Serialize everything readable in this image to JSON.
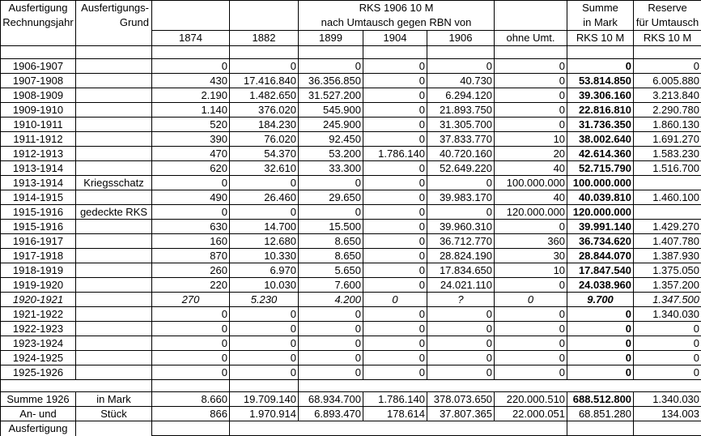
{
  "colors": {
    "grid": "#000000",
    "background": "#ffffff",
    "text": "#000000"
  },
  "table": {
    "header": {
      "col_year": [
        "Ausfertigung",
        "Rechnungsjahr"
      ],
      "col_grund": [
        "Ausfertigungs-",
        "Grund"
      ],
      "group_title": "RKS 1906 10 M",
      "group_subtitle": "nach Umtausch gegen RBN von",
      "year_labels": [
        "1874",
        "1882",
        "1899",
        "1904",
        "1906",
        "ohne Umt."
      ],
      "summe": [
        "Summe",
        "in Mark",
        "RKS 10 M"
      ],
      "reserve": [
        "Reserve",
        "für Umtausch",
        "RKS 10 M"
      ]
    },
    "rows": [
      {
        "year": "",
        "grund": "",
        "vals": [
          "",
          "",
          "",
          "",
          "",
          "",
          "",
          ""
        ],
        "empty": true
      },
      {
        "year": "1906-1907",
        "grund": "",
        "vals": [
          "0",
          "0",
          "0",
          "0",
          "0",
          "0",
          "0",
          "0"
        ]
      },
      {
        "year": "1907-1908",
        "grund": "",
        "vals": [
          "430",
          "17.416.840",
          "36.356.850",
          "0",
          "40.730",
          "0",
          "53.814.850",
          "6.005.880"
        ]
      },
      {
        "year": "1908-1909",
        "grund": "",
        "vals": [
          "2.190",
          "1.482.650",
          "31.527.200",
          "0",
          "6.294.120",
          "0",
          "39.306.160",
          "3.213.840"
        ]
      },
      {
        "year": "1909-1910",
        "grund": "",
        "vals": [
          "1.140",
          "376.020",
          "545.900",
          "0",
          "21.893.750",
          "0",
          "22.816.810",
          "2.290.780"
        ]
      },
      {
        "year": "1910-1911",
        "grund": "",
        "vals": [
          "520",
          "184.230",
          "245.900",
          "0",
          "31.305.700",
          "0",
          "31.736.350",
          "1.860.130"
        ]
      },
      {
        "year": "1911-1912",
        "grund": "",
        "vals": [
          "390",
          "76.020",
          "92.450",
          "0",
          "37.833.770",
          "10",
          "38.002.640",
          "1.691.270"
        ]
      },
      {
        "year": "1912-1913",
        "grund": "",
        "vals": [
          "470",
          "54.370",
          "53.200",
          "1.786.140",
          "40.720.160",
          "20",
          "42.614.360",
          "1.583.230"
        ]
      },
      {
        "year": "1913-1914",
        "grund": "",
        "vals": [
          "620",
          "32.610",
          "33.300",
          "0",
          "52.649.220",
          "40",
          "52.715.790",
          "1.516.700"
        ]
      },
      {
        "year": "1913-1914",
        "grund": "Kriegsschatz",
        "vals": [
          "0",
          "0",
          "0",
          "0",
          "0",
          "100.000.000",
          "100.000.000",
          ""
        ]
      },
      {
        "year": "1914-1915",
        "grund": "",
        "vals": [
          "490",
          "26.460",
          "29.650",
          "0",
          "39.983.170",
          "40",
          "40.039.810",
          "1.460.100"
        ]
      },
      {
        "year": "1915-1916",
        "grund": "gedeckte RKS",
        "vals": [
          "0",
          "0",
          "0",
          "0",
          "0",
          "120.000.000",
          "120.000.000",
          ""
        ]
      },
      {
        "year": "1915-1916",
        "grund": "",
        "vals": [
          "630",
          "14.700",
          "15.500",
          "0",
          "39.960.310",
          "0",
          "39.991.140",
          "1.429.270"
        ]
      },
      {
        "year": "1916-1917",
        "grund": "",
        "vals": [
          "160",
          "12.680",
          "8.650",
          "0",
          "36.712.770",
          "360",
          "36.734.620",
          "1.407.780"
        ]
      },
      {
        "year": "1917-1918",
        "grund": "",
        "vals": [
          "870",
          "10.330",
          "8.650",
          "0",
          "28.824.190",
          "30",
          "28.844.070",
          "1.387.930"
        ]
      },
      {
        "year": "1918-1919",
        "grund": "",
        "vals": [
          "260",
          "6.970",
          "5.650",
          "0",
          "17.834.650",
          "10",
          "17.847.540",
          "1.375.050"
        ]
      },
      {
        "year": "1919-1920",
        "grund": "",
        "vals": [
          "220",
          "10.030",
          "7.600",
          "0",
          "24.021.110",
          "0",
          "24.038.960",
          "1.357.200"
        ]
      },
      {
        "year": "1920-1921",
        "grund": "",
        "italic": true,
        "vals": [
          "270",
          "5.230",
          "4.200",
          "0",
          "?",
          "0",
          "9.700",
          "1.347.500"
        ]
      },
      {
        "year": "1921-1922",
        "grund": "",
        "vals": [
          "0",
          "0",
          "0",
          "0",
          "0",
          "0",
          "0",
          "1.340.030"
        ]
      },
      {
        "year": "1922-1923",
        "grund": "",
        "vals": [
          "0",
          "0",
          "0",
          "0",
          "0",
          "0",
          "0",
          "0"
        ]
      },
      {
        "year": "1923-1924",
        "grund": "",
        "vals": [
          "0",
          "0",
          "0",
          "0",
          "0",
          "0",
          "0",
          "0"
        ]
      },
      {
        "year": "1924-1925",
        "grund": "",
        "vals": [
          "0",
          "0",
          "0",
          "0",
          "0",
          "0",
          "0",
          "0"
        ]
      },
      {
        "year": "1925-1926",
        "grund": "",
        "vals": [
          "0",
          "0",
          "0",
          "0",
          "0",
          "0",
          "0",
          "0"
        ]
      }
    ],
    "footer": {
      "summe_row": {
        "label": "Summe 1926",
        "unit": "in Mark",
        "vals": [
          "8.660",
          "19.709.140",
          "68.934.700",
          "1.786.140",
          "378.073.650",
          "220.000.510",
          "688.512.800",
          "1.340.030"
        ]
      },
      "stueck_row": {
        "label": "An- und",
        "unit": "Stück",
        "vals": [
          "866",
          "1.970.914",
          "6.893.470",
          "178.614",
          "37.807.365",
          "22.000.051",
          "68.851.280",
          "134.003"
        ]
      },
      "last_row_label": "Ausfertigung"
    }
  }
}
